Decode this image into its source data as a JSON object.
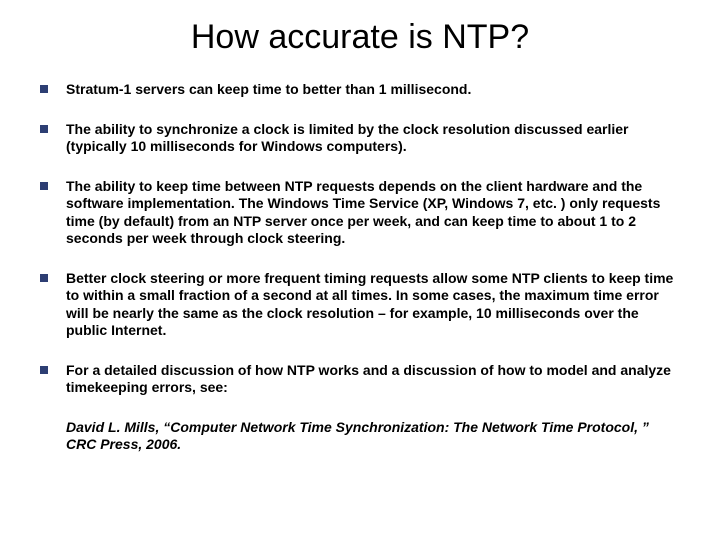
{
  "title": "How accurate is NTP?",
  "bullets": {
    "items": [
      {
        "text": "Stratum-1 servers can keep time to better than 1 millisecond."
      },
      {
        "text": "The ability to synchronize a clock is limited by the clock resolution discussed earlier (typically 10 milliseconds for Windows computers)."
      },
      {
        "text": "The ability to keep time between NTP requests depends on the client hardware and the software implementation.  The Windows Time Service (XP, Windows 7, etc. ) only requests time (by default) from an NTP server once per week, and can keep time to about 1 to 2 seconds per week through clock steering."
      },
      {
        "text": "Better clock steering or more frequent timing requests allow some NTP clients to keep time to within a small fraction of a second at all times.  In some cases, the maximum time error will be nearly the same as the clock resolution – for example, 10 milliseconds over the public Internet."
      },
      {
        "text": "For a detailed discussion of how NTP works and a discussion of how to model and analyze timekeeping errors, see:"
      }
    ]
  },
  "reference": "David L. Mills, “Computer Network Time Synchronization:  The Network Time Protocol, ” CRC Press, 2006.",
  "colors": {
    "bullet_marker": "#2d3e73",
    "background": "#ffffff",
    "text": "#000000"
  },
  "typography": {
    "title_fontsize": 34,
    "bullet_fontsize": 14,
    "bullet_fontweight": "bold",
    "reference_fontstyle": "italic"
  }
}
